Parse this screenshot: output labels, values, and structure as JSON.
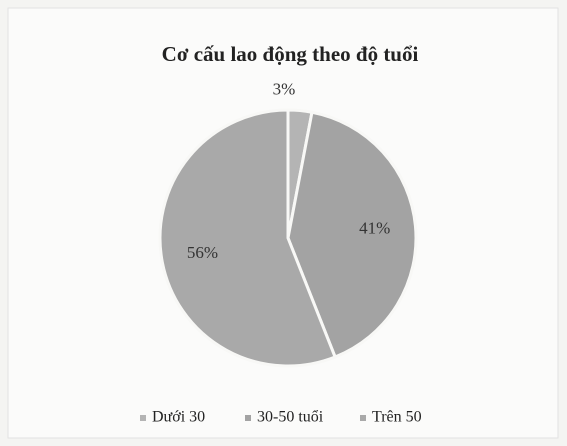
{
  "chart_data": {
    "type": "pie",
    "title": "Cơ cấu lao động theo độ tuổi",
    "categories": [
      "Dưới 30",
      "30-50 tuổi",
      "Trên 50"
    ],
    "values": [
      3,
      41,
      56
    ],
    "value_labels": [
      "3%",
      "41%",
      "56%"
    ],
    "colors": [
      "#b4b4b4",
      "#a3a3a3",
      "#a9a9a9"
    ],
    "legend": "bottom"
  }
}
